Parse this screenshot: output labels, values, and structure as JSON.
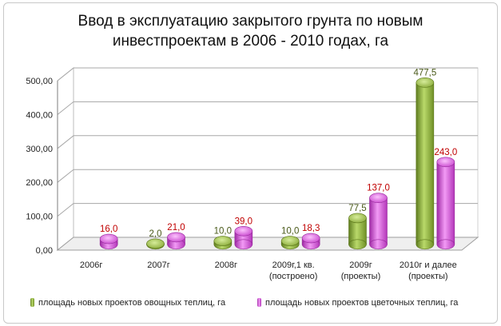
{
  "chart_data": {
    "type": "bar",
    "title": "Ввод в эксплуатацию закрытого грунта по новым\nинвестпроектам в 2006 - 2010 годах, га",
    "categories": [
      [
        "2006г"
      ],
      [
        "2007г"
      ],
      [
        "2008г"
      ],
      [
        "2009г,1 кв.",
        "(построено)"
      ],
      [
        "2009г",
        "(проекты)"
      ],
      [
        "2010г и далее",
        "(проекты)"
      ]
    ],
    "series": [
      {
        "name": "площадь новых проектов овощных теплиц, га",
        "values": [
          null,
          2.0,
          10.0,
          10.0,
          77.5,
          477.5
        ],
        "labels": [
          "",
          "2,0",
          "10,0",
          "10,0",
          "77,5",
          "477,5"
        ],
        "color": "#8db33a"
      },
      {
        "name": "площадь новых проектов цветочных теплиц, га",
        "values": [
          16.0,
          21.0,
          39.0,
          18.3,
          137.0,
          243.0
        ],
        "labels": [
          "16,0",
          "21,0",
          "39,0",
          "18,3",
          "137,0",
          "243,0"
        ],
        "color": "#d14fd6"
      }
    ],
    "ylim": [
      0,
      500
    ],
    "yticks": [
      "0,00",
      "100,00",
      "200,00",
      "300,00",
      "400,00",
      "500,00"
    ],
    "grid": true,
    "legend": "bottom",
    "xlabel": "",
    "ylabel": ""
  }
}
